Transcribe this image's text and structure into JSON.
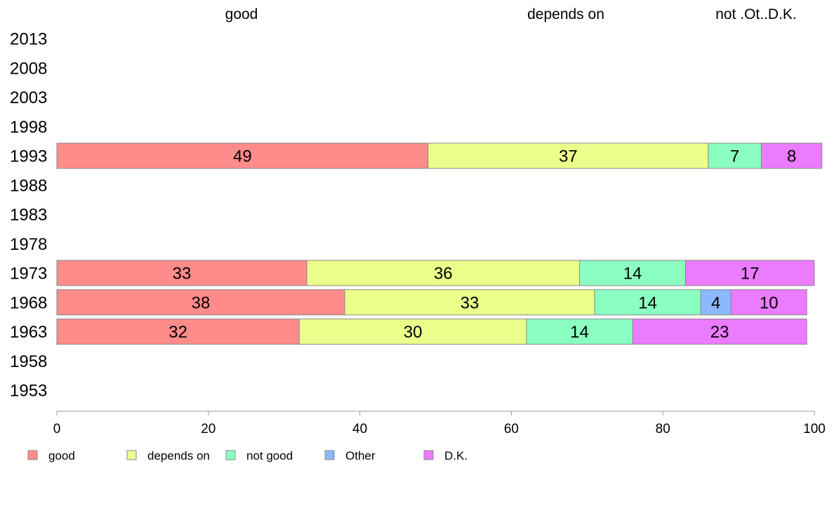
{
  "chart_data": {
    "type": "bar",
    "orientation": "horizontal",
    "stacked": true,
    "x_range": [
      0,
      100
    ],
    "x_ticks": [
      "0",
      "20",
      "40",
      "60",
      "80",
      "100"
    ],
    "categories": [
      "2013",
      "2008",
      "2003",
      "1998",
      "1993",
      "1988",
      "1983",
      "1978",
      "1973",
      "1968",
      "1963",
      "1958",
      "1953"
    ],
    "top_labels": [
      "good",
      "depends on",
      "not .Ot..D.K."
    ],
    "legend_position": "bottom-left",
    "series": [
      {
        "name": "good",
        "color": "#FF8B8B",
        "values": [
          null,
          null,
          null,
          null,
          49,
          null,
          null,
          null,
          33,
          38,
          32,
          null,
          null
        ]
      },
      {
        "name": "depends on",
        "color": "#EBFF8B",
        "values": [
          null,
          null,
          null,
          null,
          37,
          null,
          null,
          null,
          36,
          33,
          30,
          null,
          null
        ]
      },
      {
        "name": "not good",
        "color": "#8BFFC2",
        "values": [
          null,
          null,
          null,
          null,
          7,
          null,
          null,
          null,
          14,
          14,
          14,
          null,
          null
        ]
      },
      {
        "name": "Other",
        "color": "#8BB8FF",
        "values": [
          null,
          null,
          null,
          null,
          0,
          null,
          null,
          null,
          0,
          4,
          0,
          null,
          null
        ]
      },
      {
        "name": "D.K.",
        "color": "#EB7BFF",
        "values": [
          null,
          null,
          null,
          null,
          8,
          null,
          null,
          null,
          17,
          10,
          23,
          null,
          null
        ]
      }
    ]
  }
}
